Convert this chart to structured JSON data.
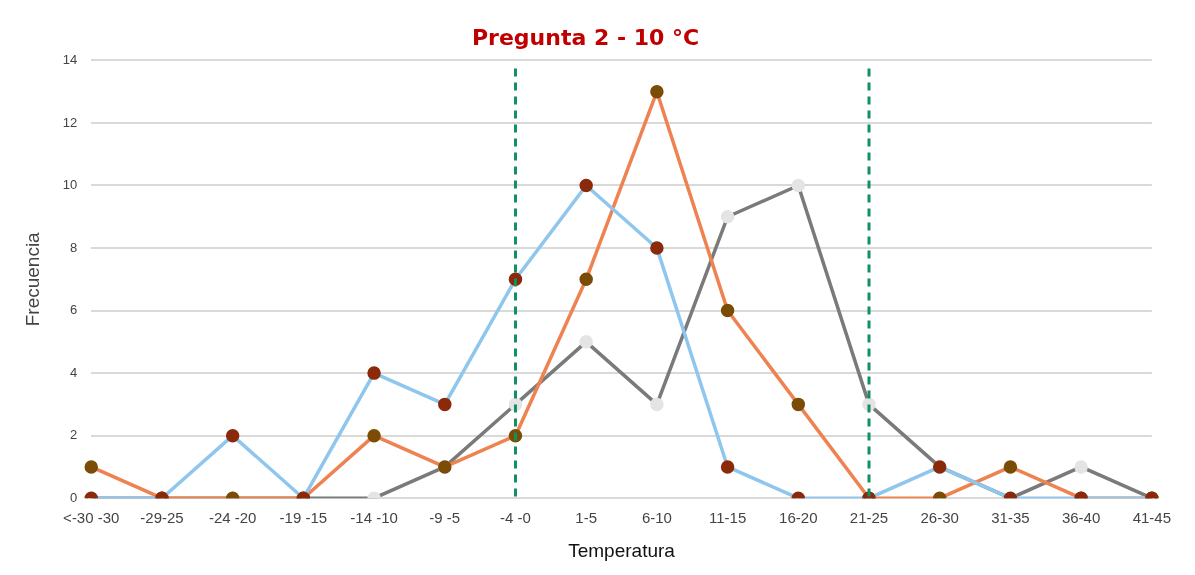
{
  "chart_data": {
    "type": "line",
    "title": "Pregunta 2 - 10 °C",
    "xlabel": "Temperatura",
    "ylabel": "Frecuencia",
    "categories": [
      "<-30 -30",
      "-29-25",
      "-24 -20",
      "-19 -15",
      "-14 -10",
      "-9 -5",
      "-4 -0",
      "1-5",
      "6-10",
      "11-15",
      "16-20",
      "21-25",
      "26-30",
      "31-35",
      "36-40",
      "41-45"
    ],
    "series": [
      {
        "color": "#8ec6ee",
        "colors": [
          "#8b2a0a",
          "#8b2a0a",
          "#8b2a0a",
          "#8b2a0a",
          "#8b2a0a",
          "#8b2a0a",
          "#8b2a0a",
          "#8b2a0a",
          "#8b2a0a",
          "#8b2a0a",
          "#8b2a0a",
          "#8b2a0a",
          "#8b2a0a",
          "#8b2a0a",
          "#8b2a0a",
          "#8b2a0a"
        ],
        "values": [
          0,
          0,
          2,
          0,
          4,
          3,
          7,
          10,
          8,
          1,
          0,
          0,
          1,
          0,
          0,
          0
        ]
      },
      {
        "color": "#ee8250",
        "colors": [
          "#7a4c06",
          "#7a4c06",
          "#7a4c06",
          "#7a4c06",
          "#7a4c06",
          "#7a4c06",
          "#7a4c06",
          "#7a4c06",
          "#7a4c06",
          "#7a4c06",
          "#7a4c06",
          "#7a4c06",
          "#7a4c06",
          "#7a4c06",
          "#7a4c06",
          "#7a4c06"
        ],
        "values": [
          1,
          0,
          0,
          0,
          2,
          1,
          2,
          7,
          13,
          6,
          3,
          0,
          0,
          1,
          0,
          0
        ]
      },
      {
        "color": "#7a7a7a",
        "colors": [
          "#e4e4e4",
          "#e4e4e4",
          "#e4e4e4",
          "#e4e4e4",
          "#e4e4e4",
          "#e4e4e4",
          "#e4e4e4",
          "#e4e4e4",
          "#e4e4e4",
          "#e4e4e4",
          "#e4e4e4",
          "#e4e4e4",
          "#e4e4e4",
          "#e4e4e4",
          "#e4e4e4",
          "#e4e4e4"
        ],
        "values": [
          0,
          0,
          0,
          0,
          0,
          1,
          3,
          5,
          3,
          9,
          10,
          3,
          1,
          0,
          1,
          0
        ]
      }
    ],
    "ylim": [
      0,
      14
    ],
    "yticks": [
      0,
      2,
      4,
      6,
      8,
      10,
      12,
      14
    ],
    "grid": "y",
    "legend": false,
    "marker": "circle",
    "line_style": "solid",
    "ref_lines": [
      {
        "axis": "x",
        "value": "-4 -0",
        "color": "#13905f",
        "line_style": "dashed"
      },
      {
        "axis": "x",
        "value": "21-25",
        "color": "#13905f",
        "line_style": "dashed"
      }
    ]
  }
}
